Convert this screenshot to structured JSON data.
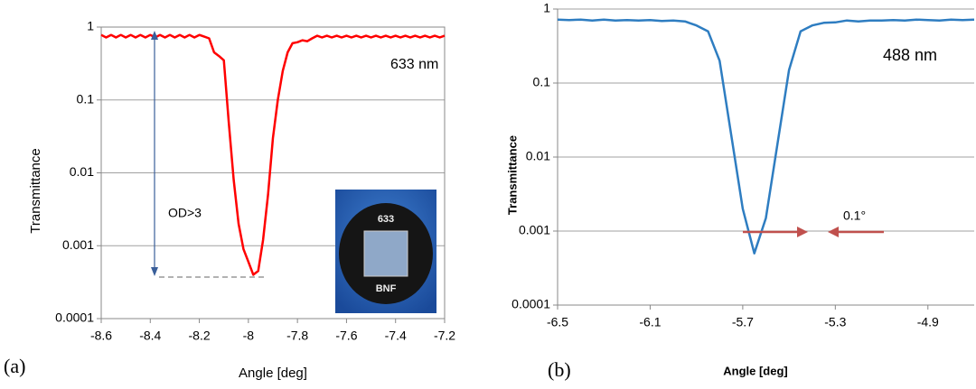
{
  "chart_data": [
    {
      "type": "line",
      "log_y": true,
      "grid": true,
      "panel_label": "(a)",
      "xlabel": "Angle  [deg]",
      "ylabel": "Transmittance",
      "annotations": [
        "633 nm",
        "OD>3"
      ],
      "inset_labels": [
        "633",
        "BNF"
      ],
      "xlim": [
        -8.6,
        -7.2
      ],
      "xticks": [
        -8.6,
        -8.4,
        -8.2,
        -8,
        -7.8,
        -7.6,
        -7.4,
        -7.2
      ],
      "ylim": [
        0.0001,
        1
      ],
      "yticks": [
        0.0001,
        0.001,
        0.01,
        0.1,
        1
      ],
      "x": [
        -8.6,
        -8.58,
        -8.56,
        -8.54,
        -8.52,
        -8.5,
        -8.48,
        -8.46,
        -8.44,
        -8.42,
        -8.4,
        -8.38,
        -8.36,
        -8.34,
        -8.32,
        -8.3,
        -8.28,
        -8.26,
        -8.24,
        -8.22,
        -8.2,
        -8.18,
        -8.16,
        -8.14,
        -8.12,
        -8.1,
        -8.08,
        -8.06,
        -8.04,
        -8.02,
        -8.0,
        -7.98,
        -7.96,
        -7.94,
        -7.92,
        -7.9,
        -7.88,
        -7.86,
        -7.84,
        -7.82,
        -7.8,
        -7.78,
        -7.76,
        -7.74,
        -7.72,
        -7.7,
        -7.68,
        -7.66,
        -7.64,
        -7.62,
        -7.6,
        -7.58,
        -7.56,
        -7.54,
        -7.52,
        -7.5,
        -7.48,
        -7.46,
        -7.44,
        -7.42,
        -7.4,
        -7.38,
        -7.36,
        -7.34,
        -7.32,
        -7.3,
        -7.28,
        -7.26,
        -7.24,
        -7.22,
        -7.2
      ],
      "series": [
        {
          "color": "#ff0000",
          "values": [
            0.78,
            0.72,
            0.78,
            0.72,
            0.78,
            0.72,
            0.78,
            0.72,
            0.78,
            0.72,
            0.78,
            0.72,
            0.78,
            0.72,
            0.78,
            0.72,
            0.78,
            0.72,
            0.78,
            0.72,
            0.78,
            0.74,
            0.7,
            0.45,
            0.4,
            0.35,
            0.05,
            0.008,
            0.002,
            0.0009,
            0.0006,
            0.0004,
            0.00045,
            0.0012,
            0.005,
            0.03,
            0.1,
            0.25,
            0.45,
            0.6,
            0.62,
            0.66,
            0.64,
            0.7,
            0.76,
            0.72,
            0.76,
            0.72,
            0.76,
            0.72,
            0.76,
            0.72,
            0.76,
            0.72,
            0.76,
            0.72,
            0.76,
            0.72,
            0.76,
            0.72,
            0.76,
            0.72,
            0.76,
            0.72,
            0.76,
            0.72,
            0.76,
            0.72,
            0.76,
            0.72,
            0.76
          ]
        }
      ]
    },
    {
      "type": "line",
      "log_y": true,
      "grid": true,
      "panel_label": "(b)",
      "xlabel": "Angle [deg]",
      "ylabel": "Transmittance",
      "annotations": [
        "488 nm",
        "0.1°"
      ],
      "xlim": [
        -6.5,
        -4.7
      ],
      "xticks": [
        -6.5,
        -6.1,
        -5.7,
        -5.3,
        -4.9
      ],
      "ylim": [
        0.0001,
        1
      ],
      "yticks": [
        0.0001,
        0.001,
        0.01,
        0.1,
        1
      ],
      "x": [
        -6.5,
        -6.45,
        -6.4,
        -6.35,
        -6.3,
        -6.25,
        -6.2,
        -6.15,
        -6.1,
        -6.05,
        -6.0,
        -5.95,
        -5.9,
        -5.85,
        -5.8,
        -5.75,
        -5.7,
        -5.65,
        -5.6,
        -5.55,
        -5.5,
        -5.45,
        -5.4,
        -5.35,
        -5.3,
        -5.25,
        -5.2,
        -5.15,
        -5.1,
        -5.05,
        -5.0,
        -4.95,
        -4.9,
        -4.85,
        -4.8,
        -4.75,
        -4.7
      ],
      "series": [
        {
          "color": "#2e7dc1",
          "values": [
            0.72,
            0.71,
            0.72,
            0.7,
            0.72,
            0.7,
            0.71,
            0.7,
            0.71,
            0.69,
            0.7,
            0.68,
            0.6,
            0.5,
            0.2,
            0.02,
            0.002,
            0.0005,
            0.0015,
            0.015,
            0.15,
            0.5,
            0.6,
            0.65,
            0.66,
            0.7,
            0.68,
            0.7,
            0.7,
            0.71,
            0.7,
            0.72,
            0.71,
            0.7,
            0.72,
            0.71,
            0.72
          ]
        }
      ]
    }
  ]
}
